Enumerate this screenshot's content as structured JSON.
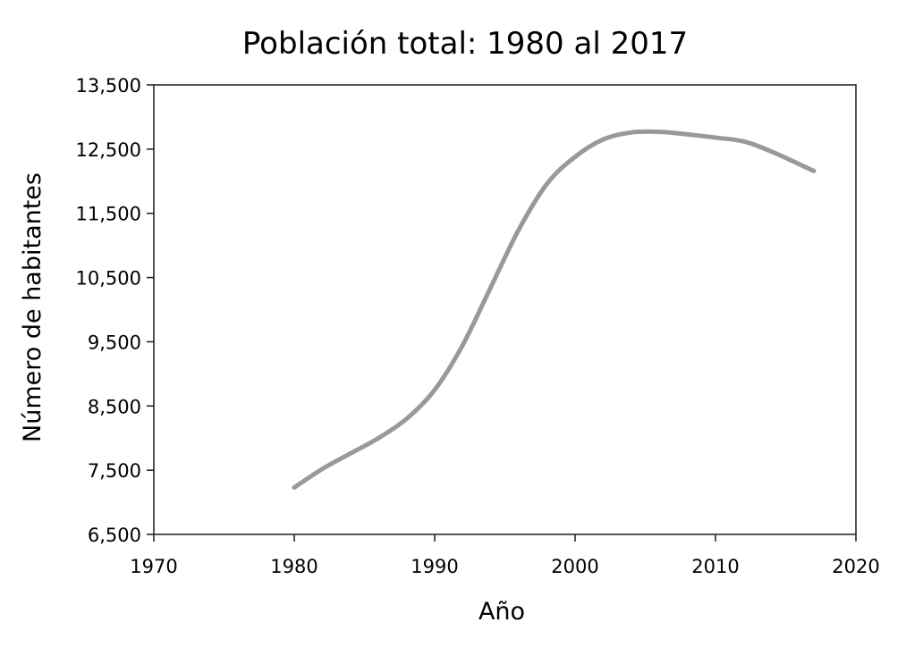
{
  "chart_data": {
    "type": "line",
    "title": "Población total: 1980 al 2017",
    "xlabel": "Año",
    "ylabel": "Número de habitantes",
    "xlim": [
      1970,
      2020
    ],
    "ylim": [
      6500,
      13500
    ],
    "x_ticks": [
      1970,
      1980,
      1990,
      2000,
      2010,
      2020
    ],
    "x_tick_labels": [
      "1970",
      "1980",
      "1990",
      "2000",
      "2010",
      "2020"
    ],
    "y_ticks": [
      6500,
      7500,
      8500,
      9500,
      10500,
      11500,
      12500,
      13500
    ],
    "y_tick_labels": [
      "6,500",
      "7,500",
      "8,500",
      "9,500",
      "10,500",
      "11,500",
      "12,500",
      "13,500"
    ],
    "grid": false,
    "legend": "none",
    "series": [
      {
        "color": "#999999",
        "x": [
          1980,
          1982,
          1984,
          1986,
          1988,
          1990,
          1992,
          1994,
          1996,
          1998,
          2000,
          2002,
          2004,
          2006,
          2008,
          2010,
          2012,
          2014,
          2017
        ],
        "y": [
          7230,
          7520,
          7760,
          8000,
          8300,
          8750,
          9450,
          10350,
          11250,
          11960,
          12380,
          12650,
          12760,
          12770,
          12730,
          12680,
          12620,
          12460,
          12160
        ]
      }
    ]
  }
}
